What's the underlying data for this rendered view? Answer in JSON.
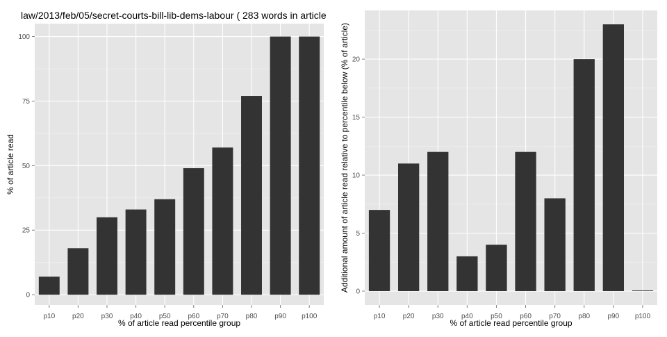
{
  "chart_data": [
    {
      "type": "bar",
      "title": "law/2013/feb/05/secret-courts-bill-lib-dems-labour ( 283 words in article",
      "xlabel": "% of article read percentile group",
      "ylabel": "% of article read",
      "categories": [
        "p10",
        "p20",
        "p30",
        "p40",
        "p50",
        "p60",
        "p70",
        "p80",
        "p90",
        "p100"
      ],
      "values": [
        7,
        18,
        30,
        33,
        37,
        49,
        57,
        77,
        100,
        100
      ],
      "ylim": [
        -4,
        105
      ],
      "yticks": [
        0,
        25,
        50,
        75,
        100
      ],
      "grid": true,
      "colors": {
        "panel": "#e5e5e5",
        "bar": "#333333",
        "grid_major": "#ffffff",
        "grid_minor": "#f2f2f2"
      }
    },
    {
      "type": "bar",
      "title": "",
      "xlabel": "% of article read percentile group",
      "ylabel": "Additional amount of article read relative to percentile below (% of article)",
      "categories": [
        "p10",
        "p20",
        "p30",
        "p40",
        "p50",
        "p60",
        "p70",
        "p80",
        "p90",
        "p100"
      ],
      "values": [
        7,
        11,
        12,
        3,
        4,
        12,
        8,
        20,
        23,
        0
      ],
      "ylim": [
        -1.2,
        24.2
      ],
      "yticks": [
        0,
        5,
        10,
        15,
        20
      ],
      "grid": true,
      "colors": {
        "panel": "#e5e5e5",
        "bar": "#333333",
        "grid_major": "#ffffff",
        "grid_minor": "#f2f2f2"
      }
    }
  ]
}
